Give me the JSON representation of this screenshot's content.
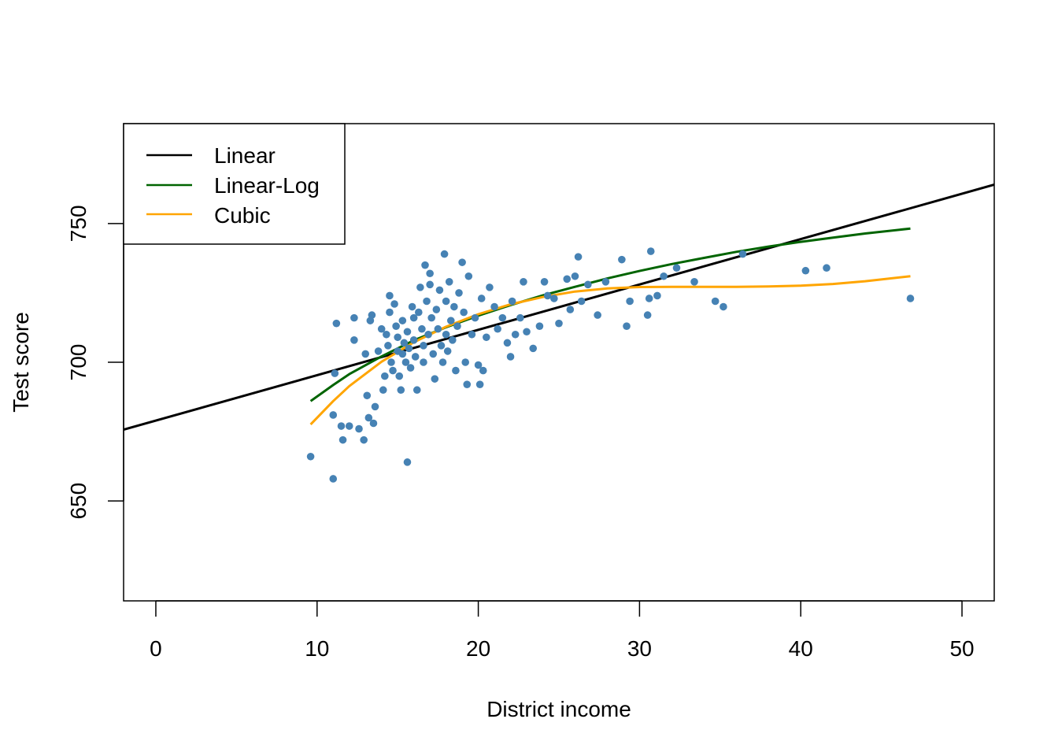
{
  "chart_data": {
    "type": "scatter",
    "xlabel": "District income",
    "ylabel": "Test score",
    "xlim": [
      -2,
      52
    ],
    "ylim": [
      614,
      786
    ],
    "x_ticks": [
      0,
      10,
      20,
      30,
      40,
      50
    ],
    "y_ticks": [
      650,
      700,
      750
    ],
    "grid": false,
    "legend": {
      "placement": "top-left",
      "entries": [
        {
          "label": "Linear",
          "color": "#000000"
        },
        {
          "label": "Linear-Log",
          "color": "#006400"
        },
        {
          "label": "Cubic",
          "color": "#FFA500"
        }
      ]
    },
    "points_color": "#4682B4",
    "points": [
      [
        9.6,
        666
      ],
      [
        11.0,
        658
      ],
      [
        11.0,
        681
      ],
      [
        11.1,
        696
      ],
      [
        11.2,
        714
      ],
      [
        11.5,
        677
      ],
      [
        11.6,
        672
      ],
      [
        12.0,
        677
      ],
      [
        12.3,
        716
      ],
      [
        12.3,
        708
      ],
      [
        12.6,
        676
      ],
      [
        12.9,
        672
      ],
      [
        13.0,
        703
      ],
      [
        13.1,
        688
      ],
      [
        13.2,
        680
      ],
      [
        13.3,
        715
      ],
      [
        13.4,
        717
      ],
      [
        13.5,
        678
      ],
      [
        13.6,
        684
      ],
      [
        13.8,
        704
      ],
      [
        14.0,
        712
      ],
      [
        14.1,
        690
      ],
      [
        14.2,
        695
      ],
      [
        14.3,
        710
      ],
      [
        14.4,
        706
      ],
      [
        14.5,
        718
      ],
      [
        14.5,
        724
      ],
      [
        14.6,
        700
      ],
      [
        14.7,
        697
      ],
      [
        14.8,
        721
      ],
      [
        14.9,
        713
      ],
      [
        15.0,
        709
      ],
      [
        15.0,
        704
      ],
      [
        15.1,
        695
      ],
      [
        15.2,
        690
      ],
      [
        15.3,
        715
      ],
      [
        15.3,
        703
      ],
      [
        15.4,
        707
      ],
      [
        15.5,
        700
      ],
      [
        15.6,
        664
      ],
      [
        15.6,
        711
      ],
      [
        15.7,
        705
      ],
      [
        15.8,
        698
      ],
      [
        15.9,
        720
      ],
      [
        16.0,
        716
      ],
      [
        16.0,
        708
      ],
      [
        16.1,
        702
      ],
      [
        16.2,
        690
      ],
      [
        16.3,
        718
      ],
      [
        16.4,
        727
      ],
      [
        16.5,
        712
      ],
      [
        16.6,
        706
      ],
      [
        16.6,
        700
      ],
      [
        16.7,
        735
      ],
      [
        16.8,
        722
      ],
      [
        16.9,
        710
      ],
      [
        17.0,
        732
      ],
      [
        17.0,
        728
      ],
      [
        17.1,
        716
      ],
      [
        17.2,
        703
      ],
      [
        17.3,
        694
      ],
      [
        17.4,
        719
      ],
      [
        17.5,
        712
      ],
      [
        17.6,
        726
      ],
      [
        17.7,
        706
      ],
      [
        17.8,
        700
      ],
      [
        17.9,
        739
      ],
      [
        18.0,
        722
      ],
      [
        18.0,
        710
      ],
      [
        18.1,
        704
      ],
      [
        18.2,
        729
      ],
      [
        18.3,
        715
      ],
      [
        18.4,
        708
      ],
      [
        18.5,
        720
      ],
      [
        18.6,
        697
      ],
      [
        18.7,
        713
      ],
      [
        18.8,
        725
      ],
      [
        19.0,
        736
      ],
      [
        19.1,
        718
      ],
      [
        19.2,
        700
      ],
      [
        19.3,
        692
      ],
      [
        19.4,
        731
      ],
      [
        19.6,
        710
      ],
      [
        19.8,
        716
      ],
      [
        20.0,
        699
      ],
      [
        20.1,
        692
      ],
      [
        20.2,
        723
      ],
      [
        20.3,
        697
      ],
      [
        20.5,
        709
      ],
      [
        20.7,
        727
      ],
      [
        21.0,
        720
      ],
      [
        21.2,
        712
      ],
      [
        21.5,
        716
      ],
      [
        21.8,
        707
      ],
      [
        22.0,
        702
      ],
      [
        22.1,
        722
      ],
      [
        22.3,
        710
      ],
      [
        22.6,
        716
      ],
      [
        22.8,
        729
      ],
      [
        23.0,
        711
      ],
      [
        23.4,
        705
      ],
      [
        23.8,
        713
      ],
      [
        24.1,
        729
      ],
      [
        24.3,
        724
      ],
      [
        24.7,
        723
      ],
      [
        25.0,
        714
      ],
      [
        25.5,
        730
      ],
      [
        25.7,
        719
      ],
      [
        26.0,
        731
      ],
      [
        26.2,
        738
      ],
      [
        26.4,
        722
      ],
      [
        26.8,
        728
      ],
      [
        27.4,
        717
      ],
      [
        27.9,
        729
      ],
      [
        28.9,
        737
      ],
      [
        29.2,
        713
      ],
      [
        29.4,
        722
      ],
      [
        30.5,
        717
      ],
      [
        30.6,
        723
      ],
      [
        30.7,
        740
      ],
      [
        31.1,
        724
      ],
      [
        31.5,
        731
      ],
      [
        32.3,
        734
      ],
      [
        33.4,
        729
      ],
      [
        34.7,
        722
      ],
      [
        35.2,
        720
      ],
      [
        36.4,
        739
      ],
      [
        40.3,
        733
      ],
      [
        41.6,
        734
      ],
      [
        46.8,
        723
      ]
    ],
    "series": [
      {
        "name": "Linear",
        "color": "#000000",
        "x": [
          -2,
          52
        ],
        "y": [
          675.7,
          764.0
        ]
      },
      {
        "name": "Linear-Log",
        "color": "#006400",
        "x": [
          9.6,
          11,
          12,
          14,
          16,
          18,
          20,
          22,
          24,
          26,
          28,
          30,
          32,
          34,
          36,
          38,
          40,
          42,
          44,
          46.8
        ],
        "y": [
          686.0,
          691.8,
          695.7,
          702.1,
          707.9,
          712.6,
          716.8,
          720.6,
          724.1,
          727.2,
          730.2,
          732.9,
          735.4,
          737.6,
          739.8,
          741.7,
          743.4,
          744.9,
          746.4,
          748.2
        ]
      },
      {
        "name": "Cubic",
        "color": "#FFA500",
        "x": [
          9.6,
          11,
          12,
          14,
          16,
          18,
          20,
          22,
          24,
          26,
          28,
          30,
          32,
          34,
          36,
          38,
          40,
          42,
          44,
          46.8
        ],
        "y": [
          677.6,
          686.0,
          691.4,
          700.2,
          707.2,
          712.8,
          717.3,
          720.9,
          723.5,
          725.5,
          726.6,
          727.1,
          727.2,
          727.2,
          727.2,
          727.3,
          727.6,
          728.2,
          729.2,
          731.0
        ]
      }
    ]
  }
}
